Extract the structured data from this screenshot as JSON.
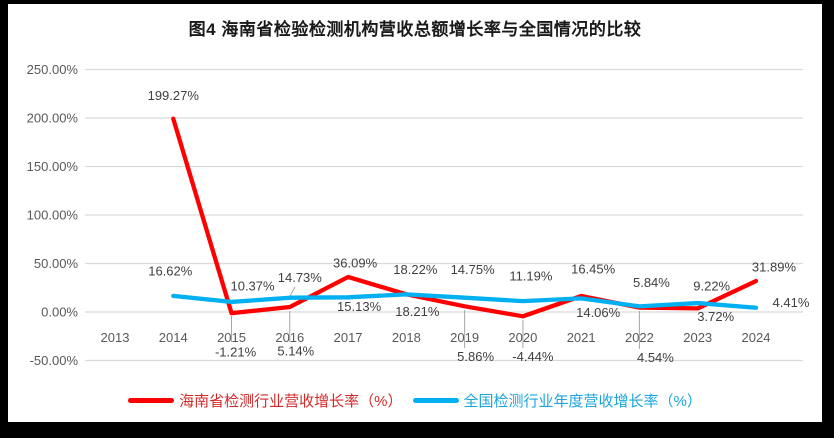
{
  "chart_data": {
    "type": "line",
    "title": "图4 海南省检验检测机构营收总额增长率与全国情况的比较",
    "categories": [
      "2013",
      "2014",
      "2015",
      "2016",
      "2017",
      "2018",
      "2019",
      "2020",
      "2021",
      "2022",
      "2023",
      "2024"
    ],
    "y_ticks": [
      250,
      200,
      150,
      100,
      50,
      0,
      -50
    ],
    "ylim": [
      -50,
      250
    ],
    "grid": true,
    "legend_position": "bottom",
    "label_format": "0.00%",
    "series": [
      {
        "name": "海南省检测行业营收增长率（%）",
        "color": "#FF0000",
        "text_color": "#d42a2a",
        "values": [
          null,
          199.27,
          -1.21,
          5.14,
          36.09,
          18.22,
          5.86,
          -4.44,
          16.45,
          4.54,
          3.72,
          31.89
        ]
      },
      {
        "name": "全国检测行业年度营收增长率（%）",
        "color": "#00B0F0",
        "text_color": "#1ba4dc",
        "values": [
          null,
          16.62,
          10.37,
          14.73,
          15.13,
          18.21,
          14.75,
          11.19,
          14.06,
          5.84,
          9.22,
          4.41
        ]
      }
    ],
    "colors": {
      "background": "#ffffff",
      "frame": "#000000",
      "gridline": "#d9d9d9",
      "axis_text": "#595959",
      "data_label_text": "#404040",
      "leader_line": "#a6a6a6",
      "title_text": "#1a1a1a"
    }
  }
}
